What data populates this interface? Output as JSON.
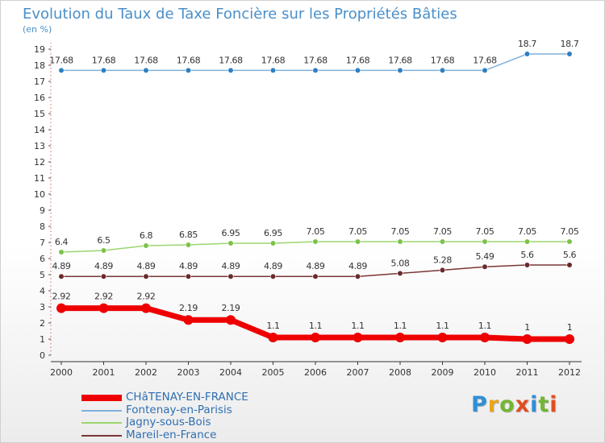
{
  "title": "Evolution du Taux de Taxe Foncière sur les Propriétés Bâties",
  "subtitle": "(en %)",
  "logo": {
    "text": "Proxiti",
    "letter_colors": [
      "#2f8fd6",
      "#e8a51a",
      "#73b634",
      "#e14d1f",
      "#2f8fd6",
      "#73b634",
      "#e14d1f"
    ]
  },
  "chart_data": {
    "type": "line",
    "x": [
      "2000",
      "2001",
      "2002",
      "2003",
      "2004",
      "2005",
      "2006",
      "2007",
      "2008",
      "2009",
      "2010",
      "2011",
      "2012"
    ],
    "ylim": [
      0,
      19
    ],
    "yticks": [
      0,
      1,
      2,
      3,
      4,
      5,
      6,
      7,
      8,
      9,
      10,
      11,
      12,
      13,
      14,
      15,
      16,
      17,
      18,
      19
    ],
    "grid": false,
    "legend_position": "bottom-left",
    "series": [
      {
        "name": "CHâTENAY-EN-FRANCE",
        "color": "#ee0000",
        "marker_color": "#ee0000",
        "emphasis": true,
        "values": [
          2.92,
          2.92,
          2.92,
          2.19,
          2.19,
          1.1,
          1.1,
          1.1,
          1.1,
          1.1,
          1.1,
          1,
          1
        ],
        "labels": [
          "2.92",
          "2.92",
          "2.92",
          "2.19",
          "2.19",
          "1.1",
          "1.1",
          "1.1",
          "1.1",
          "1.1",
          "1.1",
          "1",
          "1"
        ]
      },
      {
        "name": "Fontenay-en-Parisis",
        "color": "#7fb1dc",
        "marker_color": "#2f7fc1",
        "emphasis": false,
        "values": [
          17.68,
          17.68,
          17.68,
          17.68,
          17.68,
          17.68,
          17.68,
          17.68,
          17.68,
          17.68,
          17.68,
          18.7,
          18.7
        ],
        "labels": [
          "17.68",
          "17.68",
          "17.68",
          "17.68",
          "17.68",
          "17.68",
          "17.68",
          "17.68",
          "17.68",
          "17.68",
          "17.68",
          "18.7",
          "18.7"
        ]
      },
      {
        "name": "Jagny-sous-Bois",
        "color": "#9ad66e",
        "marker_color": "#7cc24a",
        "emphasis": false,
        "values": [
          6.4,
          6.5,
          6.8,
          6.85,
          6.95,
          6.95,
          7.05,
          7.05,
          7.05,
          7.05,
          7.05,
          7.05,
          7.05
        ],
        "labels": [
          "6.4",
          "6.5",
          "6.8",
          "6.85",
          "6.95",
          "6.95",
          "7.05",
          "7.05",
          "7.05",
          "7.05",
          "7.05",
          "7.05",
          "7.05"
        ]
      },
      {
        "name": "Mareil-en-France",
        "color": "#7a3636",
        "marker_color": "#6b2a2a",
        "emphasis": false,
        "values": [
          4.89,
          4.89,
          4.89,
          4.89,
          4.89,
          4.89,
          4.89,
          4.89,
          5.08,
          5.28,
          5.49,
          5.6,
          5.6
        ],
        "labels": [
          "4.89",
          "4.89",
          "4.89",
          "4.89",
          "4.89",
          "4.89",
          "4.89",
          "4.89",
          "5.08",
          "5.28",
          "5.49",
          "5.6",
          "5.6"
        ]
      }
    ]
  }
}
